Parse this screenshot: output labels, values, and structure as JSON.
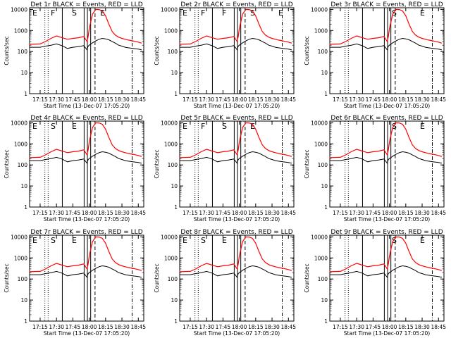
{
  "colors": {
    "events": "#000000",
    "lld": "#ff0000"
  },
  "chart_data": {
    "type": "line",
    "layout": "3x3 grid",
    "ylog": true,
    "ylim": [
      1,
      12000
    ],
    "yticks": [
      "1",
      "10",
      "100",
      "1000",
      "10000"
    ],
    "xlim": [
      "17:05:20",
      "18:50:00"
    ],
    "xticks": [
      "17:15",
      "17:30",
      "17:45",
      "18:00",
      "18:15",
      "18:30",
      "18:45"
    ],
    "ylabel": "Counts/sec",
    "xlabel": "Start Time (13-Dec-07 17:05:20)",
    "series_names": [
      "Events",
      "LLD"
    ],
    "panels": [
      {
        "title": "Det 1r  BLACK = Events, RED = LLD",
        "letters": [
          "E",
          "F",
          "S",
          "E"
        ]
      },
      {
        "title": "Det 2r  BLACK = Events, RED = LLD",
        "letters": [
          "E",
          "F",
          "F",
          "S",
          "E"
        ]
      },
      {
        "title": "Det 3r  BLACK = Events, RED = LLD",
        "letters": [
          "S",
          "E"
        ]
      },
      {
        "title": "Det 4r  BLACK = Events, RED = LLD",
        "letters": [
          "E",
          "S",
          "E"
        ]
      },
      {
        "title": "Det 5r  BLACK = Events, RED = LLD",
        "letters": [
          "E",
          "F",
          "S",
          "E"
        ]
      },
      {
        "title": "Det 6r  BLACK = Events, RED = LLD",
        "letters": [
          "S",
          "E"
        ]
      },
      {
        "title": "Det 7r  BLACK = Events, RED = LLD",
        "letters": [
          "E",
          "S",
          "E"
        ]
      },
      {
        "title": "Det 8r  BLACK = Events, RED = LLD",
        "letters": [
          "E",
          "S",
          "E"
        ]
      },
      {
        "title": "Det 9r  BLACK = Events, RED = LLD",
        "letters": [
          "S",
          "E"
        ]
      }
    ],
    "approx_series": {
      "time_hhmm": [
        "17:05",
        "17:15",
        "17:20",
        "17:25",
        "17:30",
        "17:35",
        "17:40",
        "17:45",
        "17:50",
        "17:55",
        "17:58",
        "17:59",
        "18:00",
        "18:03",
        "18:06",
        "18:09",
        "18:12",
        "18:15",
        "18:18",
        "18:21",
        "18:24",
        "18:27",
        "18:30",
        "18:33",
        "18:36",
        "18:40",
        "18:45",
        "18:48"
      ],
      "events": [
        160,
        160,
        180,
        200,
        230,
        190,
        140,
        160,
        170,
        190,
        120,
        180,
        200,
        260,
        320,
        380,
        420,
        400,
        360,
        300,
        250,
        200,
        180,
        160,
        150,
        140,
        130,
        120
      ],
      "lld": [
        220,
        230,
        300,
        420,
        550,
        460,
        380,
        420,
        450,
        520,
        300,
        520,
        1200,
        6000,
        10000,
        9800,
        8500,
        5000,
        2000,
        900,
        600,
        480,
        420,
        380,
        350,
        320,
        280,
        250
      ]
    },
    "vertical_markers": {
      "dotted_minutes": [
        14,
        17
      ],
      "solid_minutes": [
        30,
        50,
        53,
        56
      ],
      "dashed_minutes": [
        60
      ],
      "dashdot_minutes": [
        94
      ]
    }
  }
}
